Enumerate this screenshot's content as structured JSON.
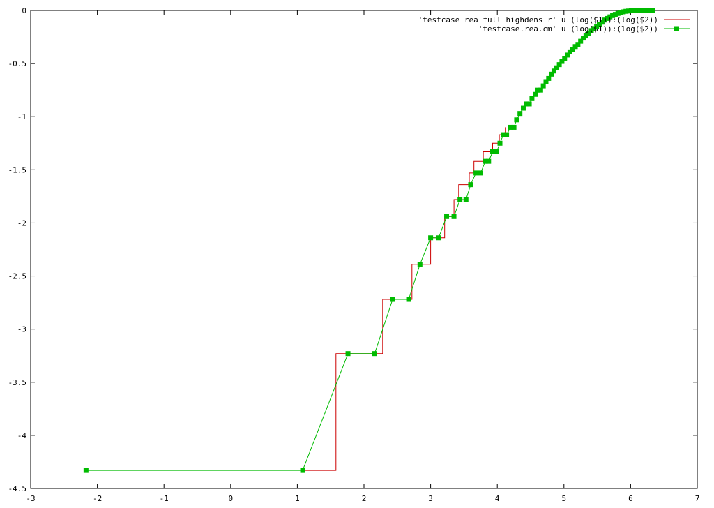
{
  "chart_data": {
    "type": "line",
    "title": "",
    "xlabel": "",
    "ylabel": "",
    "xlim": [
      -3,
      7
    ],
    "ylim": [
      -4.5,
      0
    ],
    "grid": false,
    "legend_position": "top-right",
    "x_ticks": [
      -3,
      -2,
      -1,
      0,
      1,
      2,
      3,
      4,
      5,
      6,
      7
    ],
    "y_ticks": [
      0,
      -0.5,
      -1,
      -1.5,
      -2,
      -2.5,
      -3,
      -3.5,
      -4,
      -4.5
    ],
    "x_tick_labels": [
      "-3",
      "-2",
      "-1",
      "0",
      "1",
      "2",
      "3",
      "4",
      "5",
      "6",
      "7"
    ],
    "y_tick_labels": [
      "0",
      "-0.5",
      "-1",
      "-1.5",
      "-2",
      "-2.5",
      "-3",
      "-3.5",
      "-4",
      "-4.5"
    ],
    "series": [
      {
        "name": "'testcase_rea_full_highdens_r' u (log($1)):(log($2))",
        "style": "steps",
        "color": "#cc0000",
        "x": [
          1.08,
          1.58,
          1.58,
          2.28,
          2.28,
          2.72,
          2.72,
          3.0,
          3.0,
          3.21,
          3.21,
          3.35,
          3.35,
          3.42,
          3.42,
          3.58,
          3.58,
          3.65,
          3.65,
          3.79,
          3.79,
          3.93,
          3.93,
          4.03,
          4.03,
          4.12,
          4.12
        ],
        "y": [
          -4.33,
          -4.33,
          -3.23,
          -3.23,
          -2.72,
          -2.72,
          -2.39,
          -2.39,
          -2.14,
          -2.14,
          -1.94,
          -1.94,
          -1.78,
          -1.78,
          -1.64,
          -1.64,
          -1.53,
          -1.53,
          -1.42,
          -1.42,
          -1.33,
          -1.33,
          -1.25,
          -1.25,
          -1.17,
          -1.17,
          -1.1
        ]
      },
      {
        "name": "'testcase.rea.cm' u (log($1)):(log($2))",
        "style": "linespoints",
        "color": "#00bb00",
        "x": [
          -2.17,
          1.08,
          1.76,
          2.16,
          2.43,
          2.67,
          2.84,
          3.0,
          3.12,
          3.24,
          3.35,
          3.44,
          3.53,
          3.6,
          3.68,
          3.75,
          3.82,
          3.87,
          3.93,
          3.99,
          4.04,
          4.09,
          4.14,
          4.2,
          4.25,
          4.29,
          4.34,
          4.39,
          4.44,
          4.48,
          4.52,
          4.57,
          4.61,
          4.65,
          4.69,
          4.73,
          4.77,
          4.81,
          4.85,
          4.89,
          4.93,
          4.97,
          5.01,
          5.05,
          5.09,
          5.13,
          5.17,
          5.21,
          5.25,
          5.29,
          5.33,
          5.37,
          5.41,
          5.45,
          5.49,
          5.53,
          5.57,
          5.61,
          5.65,
          5.69,
          5.73,
          5.77,
          5.81,
          5.85,
          5.89,
          5.93,
          5.97,
          6.01,
          6.05,
          6.09,
          6.13,
          6.17,
          6.21,
          6.25,
          6.29,
          6.33
        ],
        "y": [
          -4.33,
          -4.33,
          -3.23,
          -3.23,
          -2.72,
          -2.72,
          -2.39,
          -2.14,
          -2.14,
          -1.94,
          -1.94,
          -1.78,
          -1.78,
          -1.64,
          -1.53,
          -1.53,
          -1.42,
          -1.42,
          -1.33,
          -1.33,
          -1.25,
          -1.17,
          -1.17,
          -1.1,
          -1.1,
          -1.03,
          -0.97,
          -0.92,
          -0.88,
          -0.88,
          -0.83,
          -0.79,
          -0.75,
          -0.75,
          -0.71,
          -0.67,
          -0.64,
          -0.6,
          -0.57,
          -0.54,
          -0.51,
          -0.48,
          -0.45,
          -0.42,
          -0.39,
          -0.37,
          -0.34,
          -0.32,
          -0.29,
          -0.26,
          -0.24,
          -0.22,
          -0.19,
          -0.17,
          -0.15,
          -0.13,
          -0.11,
          -0.09,
          -0.075,
          -0.06,
          -0.048,
          -0.037,
          -0.028,
          -0.02,
          -0.013,
          -0.008,
          -0.005,
          -0.003,
          -0.002,
          -0.001,
          0.0,
          0.0,
          0.0,
          0.0,
          0.0,
          0.0
        ]
      }
    ]
  }
}
